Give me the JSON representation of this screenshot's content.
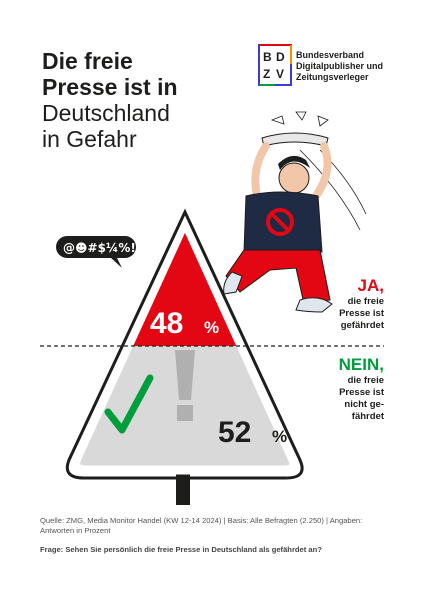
{
  "title_lines": [
    "Die freie",
    "Presse ist in",
    "Deutschland",
    "in Gefahr"
  ],
  "logo": {
    "letters": [
      "B",
      "D",
      "Z",
      "V"
    ],
    "lines": [
      "Bundesverband",
      "Digitalpublisher und",
      "Zeitungsverleger"
    ]
  },
  "speech_bubble": "@☻#$¼%!",
  "chart_data": {
    "type": "bar",
    "categories": [
      "JA, die freie Presse ist gefährdet",
      "NEIN, die freie Presse ist nicht gefährdet"
    ],
    "values": [
      48,
      52
    ],
    "unit": "%",
    "colors": [
      "#e30613",
      "#009e3d"
    ]
  },
  "answers": {
    "yes": {
      "key": "JA,",
      "lines": [
        "die freie",
        "Presse ist",
        "gefährdet"
      ],
      "value": "48",
      "unit": "%",
      "color": "#e30613"
    },
    "no": {
      "key": "NEIN,",
      "lines": [
        "die freie",
        "Presse ist",
        "nicht ge-",
        "fährdet"
      ],
      "value": "52",
      "unit": "%",
      "color": "#009e3d"
    }
  },
  "footer": {
    "source": "Quelle: ZMG, Media Monitor Handel (KW 12-14 2024) | Basis: Alle Befragten (2.250) | Angaben: Antworten in Prozent",
    "question": "Frage: Sehen Sie persönlich die freie Presse in Deutschland als gefährdet an?"
  },
  "colors": {
    "red": "#e30613",
    "green": "#009e3d",
    "sign_gray": "#d9d9d9",
    "dark": "#1d1d1b"
  },
  "icons": [
    "checkmark-icon",
    "exclamation-icon",
    "prohibition-icon",
    "newspaper-icon"
  ]
}
